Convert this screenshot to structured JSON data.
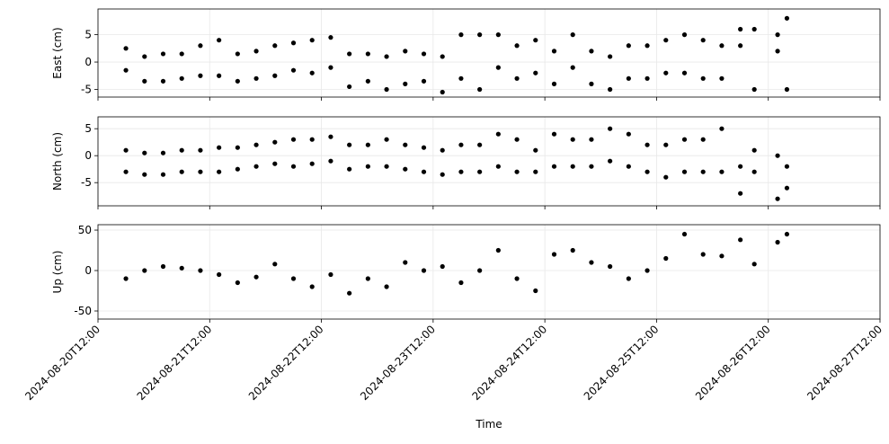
{
  "chart_data": [
    {
      "type": "scatter",
      "ylabel": "East (cm)",
      "color": "#000000",
      "grid": true,
      "xlim": [
        "2024-08-20T12:00",
        "2024-08-27T12:00"
      ],
      "xticks": [
        "2024-08-20T12:00",
        "2024-08-21T12:00",
        "2024-08-22T12:00",
        "2024-08-23T12:00",
        "2024-08-24T12:00",
        "2024-08-25T12:00",
        "2024-08-26T12:00",
        "2024-08-27T12:00"
      ],
      "ylim": [
        -6.4,
        9.7
      ],
      "yticks": [
        -5,
        0,
        5
      ],
      "x": [
        "2024-08-20T18:00",
        "2024-08-20T18:00",
        "2024-08-20T22:00",
        "2024-08-20T22:00",
        "2024-08-21T02:00",
        "2024-08-21T02:00",
        "2024-08-21T06:00",
        "2024-08-21T06:00",
        "2024-08-21T10:00",
        "2024-08-21T10:00",
        "2024-08-21T14:00",
        "2024-08-21T14:00",
        "2024-08-21T18:00",
        "2024-08-21T18:00",
        "2024-08-21T22:00",
        "2024-08-21T22:00",
        "2024-08-22T02:00",
        "2024-08-22T02:00",
        "2024-08-22T06:00",
        "2024-08-22T06:00",
        "2024-08-22T10:00",
        "2024-08-22T10:00",
        "2024-08-22T14:00",
        "2024-08-22T14:00",
        "2024-08-22T18:00",
        "2024-08-22T18:00",
        "2024-08-22T22:00",
        "2024-08-22T22:00",
        "2024-08-23T02:00",
        "2024-08-23T02:00",
        "2024-08-23T06:00",
        "2024-08-23T06:00",
        "2024-08-23T10:00",
        "2024-08-23T10:00",
        "2024-08-23T14:00",
        "2024-08-23T14:00",
        "2024-08-23T18:00",
        "2024-08-23T18:00",
        "2024-08-23T22:00",
        "2024-08-23T22:00",
        "2024-08-24T02:00",
        "2024-08-24T02:00",
        "2024-08-24T06:00",
        "2024-08-24T06:00",
        "2024-08-24T10:00",
        "2024-08-24T10:00",
        "2024-08-24T14:00",
        "2024-08-24T14:00",
        "2024-08-24T18:00",
        "2024-08-24T18:00",
        "2024-08-24T22:00",
        "2024-08-24T22:00",
        "2024-08-25T02:00",
        "2024-08-25T02:00",
        "2024-08-25T06:00",
        "2024-08-25T06:00",
        "2024-08-25T10:00",
        "2024-08-25T10:00",
        "2024-08-25T14:00",
        "2024-08-25T14:00",
        "2024-08-25T18:00",
        "2024-08-25T18:00",
        "2024-08-25T22:00",
        "2024-08-25T22:00",
        "2024-08-26T02:00",
        "2024-08-26T02:00",
        "2024-08-26T06:00",
        "2024-08-26T06:00",
        "2024-08-26T09:00",
        "2024-08-26T09:00",
        "2024-08-26T14:00",
        "2024-08-26T14:00",
        "2024-08-26T16:00",
        "2024-08-26T16:00"
      ],
      "values": [
        2.5,
        -1.5,
        1,
        -3.5,
        1.5,
        -3.5,
        1.5,
        -3,
        3,
        -2.5,
        4,
        -2.5,
        1.5,
        -3.5,
        2,
        -3,
        3,
        -2.5,
        3.5,
        -1.5,
        4,
        -2,
        4.5,
        -1,
        1.5,
        -4.5,
        1.5,
        -3.5,
        1,
        -5,
        2,
        -4,
        1.5,
        -3.5,
        1,
        -5.5,
        5,
        -3,
        5,
        -5,
        5,
        -1,
        3,
        -3,
        4,
        -2,
        2,
        -4,
        5,
        -1,
        2,
        -4,
        1,
        -5,
        3,
        -3,
        3,
        -3,
        4,
        -2,
        5,
        -2,
        4,
        -3,
        3,
        -3,
        6,
        3,
        6,
        -5,
        5,
        2,
        8,
        -5
      ]
    },
    {
      "type": "scatter",
      "ylabel": "North (cm)",
      "color": "#000000",
      "grid": true,
      "xlim": [
        "2024-08-20T12:00",
        "2024-08-27T12:00"
      ],
      "xticks": [
        "2024-08-20T12:00",
        "2024-08-21T12:00",
        "2024-08-22T12:00",
        "2024-08-23T12:00",
        "2024-08-24T12:00",
        "2024-08-25T12:00",
        "2024-08-26T12:00",
        "2024-08-27T12:00"
      ],
      "ylim": [
        -9.3,
        7.2
      ],
      "yticks": [
        -5,
        0,
        5
      ],
      "x": [
        "2024-08-20T18:00",
        "2024-08-20T18:00",
        "2024-08-20T22:00",
        "2024-08-20T22:00",
        "2024-08-21T02:00",
        "2024-08-21T02:00",
        "2024-08-21T06:00",
        "2024-08-21T06:00",
        "2024-08-21T10:00",
        "2024-08-21T10:00",
        "2024-08-21T14:00",
        "2024-08-21T14:00",
        "2024-08-21T18:00",
        "2024-08-21T18:00",
        "2024-08-21T22:00",
        "2024-08-21T22:00",
        "2024-08-22T02:00",
        "2024-08-22T02:00",
        "2024-08-22T06:00",
        "2024-08-22T06:00",
        "2024-08-22T10:00",
        "2024-08-22T10:00",
        "2024-08-22T14:00",
        "2024-08-22T14:00",
        "2024-08-22T18:00",
        "2024-08-22T18:00",
        "2024-08-22T22:00",
        "2024-08-22T22:00",
        "2024-08-23T02:00",
        "2024-08-23T02:00",
        "2024-08-23T06:00",
        "2024-08-23T06:00",
        "2024-08-23T10:00",
        "2024-08-23T10:00",
        "2024-08-23T14:00",
        "2024-08-23T14:00",
        "2024-08-23T18:00",
        "2024-08-23T18:00",
        "2024-08-23T22:00",
        "2024-08-23T22:00",
        "2024-08-24T02:00",
        "2024-08-24T02:00",
        "2024-08-24T06:00",
        "2024-08-24T06:00",
        "2024-08-24T10:00",
        "2024-08-24T10:00",
        "2024-08-24T14:00",
        "2024-08-24T14:00",
        "2024-08-24T18:00",
        "2024-08-24T18:00",
        "2024-08-24T22:00",
        "2024-08-24T22:00",
        "2024-08-25T02:00",
        "2024-08-25T02:00",
        "2024-08-25T06:00",
        "2024-08-25T06:00",
        "2024-08-25T10:00",
        "2024-08-25T10:00",
        "2024-08-25T14:00",
        "2024-08-25T14:00",
        "2024-08-25T18:00",
        "2024-08-25T18:00",
        "2024-08-25T22:00",
        "2024-08-25T22:00",
        "2024-08-26T02:00",
        "2024-08-26T02:00",
        "2024-08-26T06:00",
        "2024-08-26T06:00",
        "2024-08-26T09:00",
        "2024-08-26T09:00",
        "2024-08-26T14:00",
        "2024-08-26T14:00",
        "2024-08-26T16:00",
        "2024-08-26T16:00"
      ],
      "values": [
        1,
        -3,
        0.5,
        -3.5,
        0.5,
        -3.5,
        1,
        -3,
        1,
        -3,
        1.5,
        -3,
        1.5,
        -2.5,
        2,
        -2,
        2.5,
        -1.5,
        3,
        -2,
        3,
        -1.5,
        3.5,
        -1,
        2,
        -2.5,
        2,
        -2,
        3,
        -2,
        2,
        -2.5,
        1.5,
        -3,
        1,
        -3.5,
        2,
        -3,
        2,
        -3,
        4,
        -2,
        3,
        -3,
        1,
        -3,
        4,
        -2,
        3,
        -2,
        3,
        -2,
        5,
        -1,
        4,
        -2,
        2,
        -3,
        2,
        -4,
        3,
        -3,
        3,
        -3,
        5,
        -3,
        -2,
        -7,
        1,
        -3,
        0,
        -8,
        -2,
        -6
      ]
    },
    {
      "type": "scatter",
      "ylabel": "Up (cm)",
      "xlabel": "Time",
      "color": "#000000",
      "grid": true,
      "xlim": [
        "2024-08-20T12:00",
        "2024-08-27T12:00"
      ],
      "xticks": [
        "2024-08-20T12:00",
        "2024-08-21T12:00",
        "2024-08-22T12:00",
        "2024-08-23T12:00",
        "2024-08-24T12:00",
        "2024-08-25T12:00",
        "2024-08-26T12:00",
        "2024-08-27T12:00"
      ],
      "ylim": [
        -60,
        56.7
      ],
      "yticks": [
        -50,
        0,
        50
      ],
      "x": [
        "2024-08-20T18:00",
        "2024-08-20T22:00",
        "2024-08-21T02:00",
        "2024-08-21T06:00",
        "2024-08-21T10:00",
        "2024-08-21T14:00",
        "2024-08-21T18:00",
        "2024-08-21T22:00",
        "2024-08-22T02:00",
        "2024-08-22T06:00",
        "2024-08-22T10:00",
        "2024-08-22T14:00",
        "2024-08-22T18:00",
        "2024-08-22T22:00",
        "2024-08-23T02:00",
        "2024-08-23T06:00",
        "2024-08-23T10:00",
        "2024-08-23T14:00",
        "2024-08-23T18:00",
        "2024-08-23T22:00",
        "2024-08-24T02:00",
        "2024-08-24T06:00",
        "2024-08-24T10:00",
        "2024-08-24T14:00",
        "2024-08-24T18:00",
        "2024-08-24T22:00",
        "2024-08-25T02:00",
        "2024-08-25T06:00",
        "2024-08-25T10:00",
        "2024-08-25T14:00",
        "2024-08-25T18:00",
        "2024-08-25T22:00",
        "2024-08-26T02:00",
        "2024-08-26T06:00",
        "2024-08-26T09:00",
        "2024-08-26T14:00",
        "2024-08-26T16:00"
      ],
      "values": [
        -10,
        0,
        5,
        3,
        0,
        -5,
        -15,
        -8,
        8,
        -10,
        -20,
        -5,
        -28,
        -10,
        -20,
        10,
        0,
        5,
        -15,
        0,
        25,
        -10,
        -25,
        20,
        25,
        10,
        5,
        -10,
        0,
        15,
        45,
        20,
        18,
        38,
        8,
        35,
        45
      ]
    }
  ]
}
